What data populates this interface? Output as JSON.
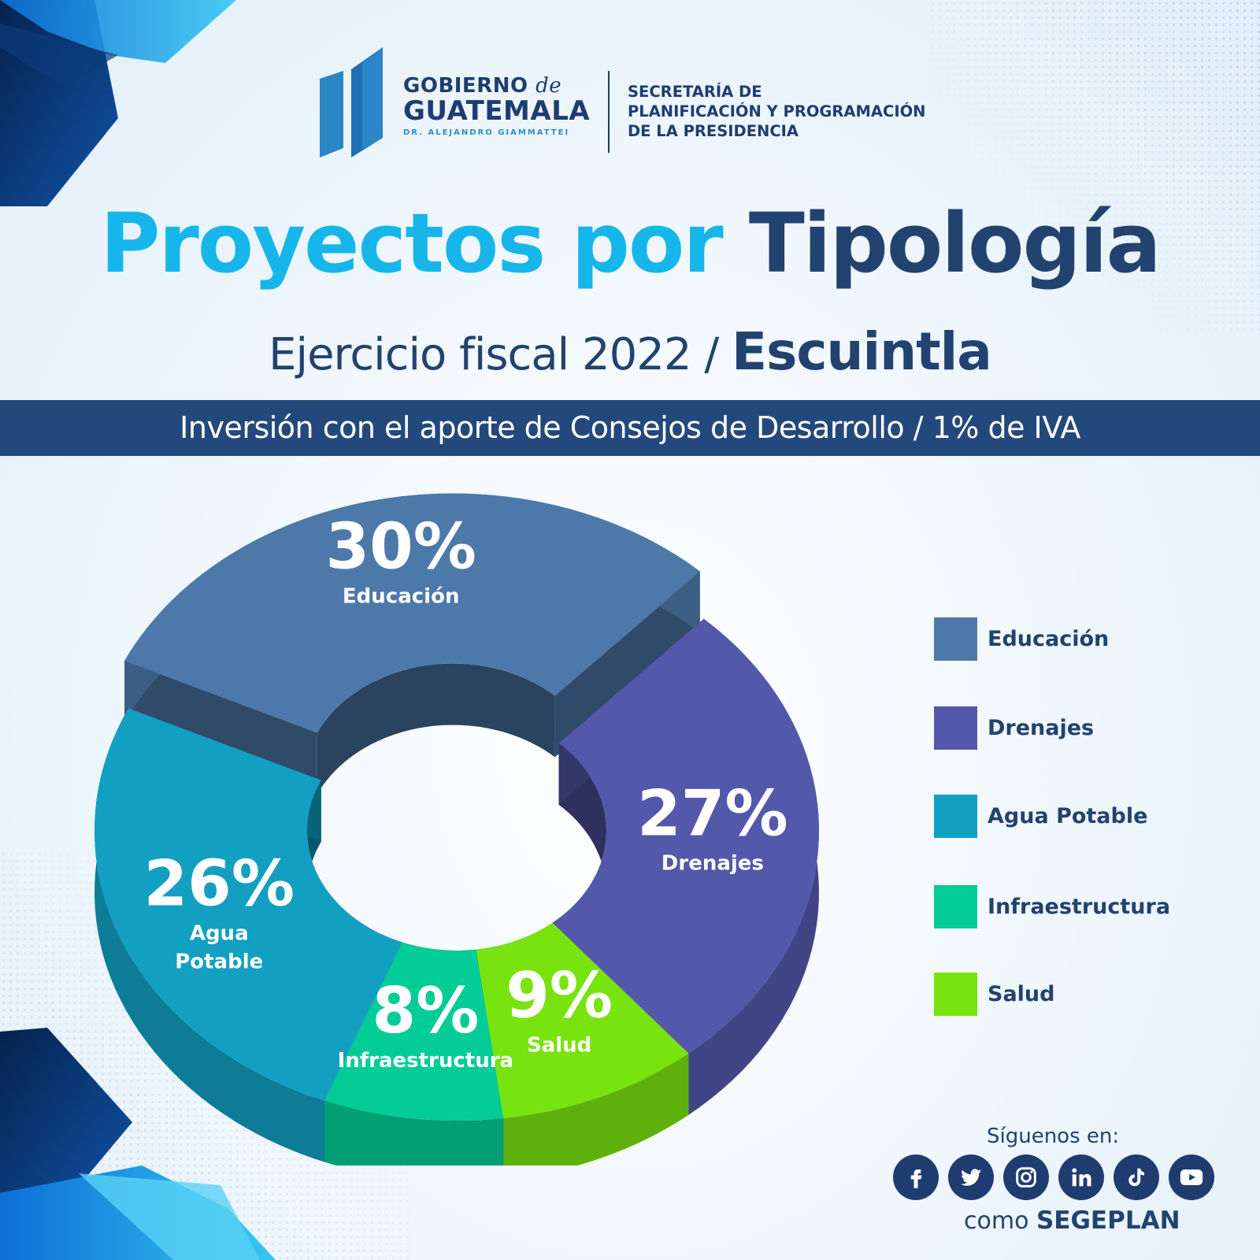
{
  "header": {
    "gov_line1": "GOBIERNO",
    "gov_de": "de",
    "gov_line2": "GUATEMALA",
    "gov_line3": "DR. ALEJANDRO GIAMMATTEI",
    "secretaria": [
      "SECRETARÍA DE",
      "PLANIFICACIÓN Y PROGRAMACIÓN",
      "DE LA PRESIDENCIA"
    ]
  },
  "title_part1": "Proyectos por",
  "title_part2": "Tipología",
  "subtitle_part1": "Ejercicio fiscal 2022 /",
  "subtitle_part2": "Escuintla",
  "band_text": "Inversión con el aporte de Consejos de Desarrollo / 1% de IVA",
  "chart_data": {
    "type": "pie",
    "variant": "3d-donut",
    "categories": [
      "Educación",
      "Drenajes",
      "Salud",
      "Infraestructura",
      "Agua Potable"
    ],
    "values": [
      30,
      27,
      9,
      8,
      26
    ],
    "display": [
      "30%",
      "27%",
      "9%",
      "8%",
      "26%"
    ],
    "segment_labels": [
      "Educación",
      "Drenajes",
      "Salud",
      "Infraestructura",
      "Agua Potable"
    ],
    "colors": [
      "#4d79aa",
      "#5358aa",
      "#79e310",
      "#03cc96",
      "#129fc2"
    ],
    "legend_position": "right"
  },
  "legend": [
    {
      "label": "Educación",
      "color": "#4d79aa"
    },
    {
      "label": "Drenajes",
      "color": "#5358aa"
    },
    {
      "label": "Agua Potable",
      "color": "#129fc2"
    },
    {
      "label": "Infraestructura",
      "color": "#03cc96"
    },
    {
      "label": "Salud",
      "color": "#79e310"
    }
  ],
  "footer": {
    "follow_text": "Síguenos en:",
    "como": "como",
    "handle": "SEGEPLAN",
    "icons": [
      "facebook-icon",
      "twitter-icon",
      "instagram-icon",
      "linkedin-icon",
      "tiktok-icon",
      "youtube-icon"
    ]
  }
}
